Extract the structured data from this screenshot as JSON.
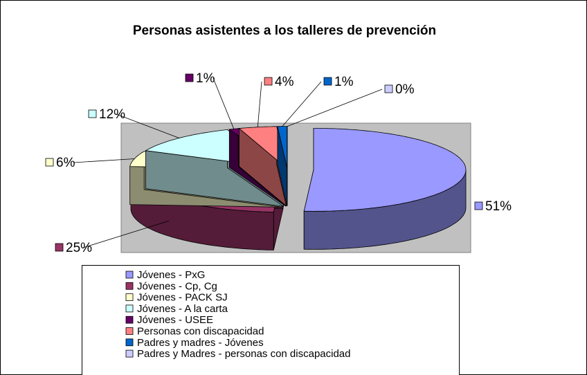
{
  "chart_data": {
    "type": "pie3d",
    "title": "Personas asistentes a los talleres de prevención",
    "categories": [
      "Jóvenes - PxG",
      "Jóvenes - Cp, Cg",
      "Jóvenes - PACK SJ",
      "Jóvenes - A la carta",
      "Jóvenes - USEE",
      "Personas con discapacidad",
      "Padres y madres - Jóvenes",
      "Padres y Madres - personas con discapacidad"
    ],
    "values": [
      51,
      25,
      6,
      12,
      1,
      4,
      1,
      0
    ],
    "value_labels": [
      "51%",
      "25%",
      "6%",
      "12%",
      "1%",
      "4%",
      "1%",
      "0%"
    ],
    "colors": [
      "#9999ff",
      "#993366",
      "#ffffcc",
      "#ccffff",
      "#660066",
      "#ff8080",
      "#0066cc",
      "#ccccff"
    ]
  }
}
